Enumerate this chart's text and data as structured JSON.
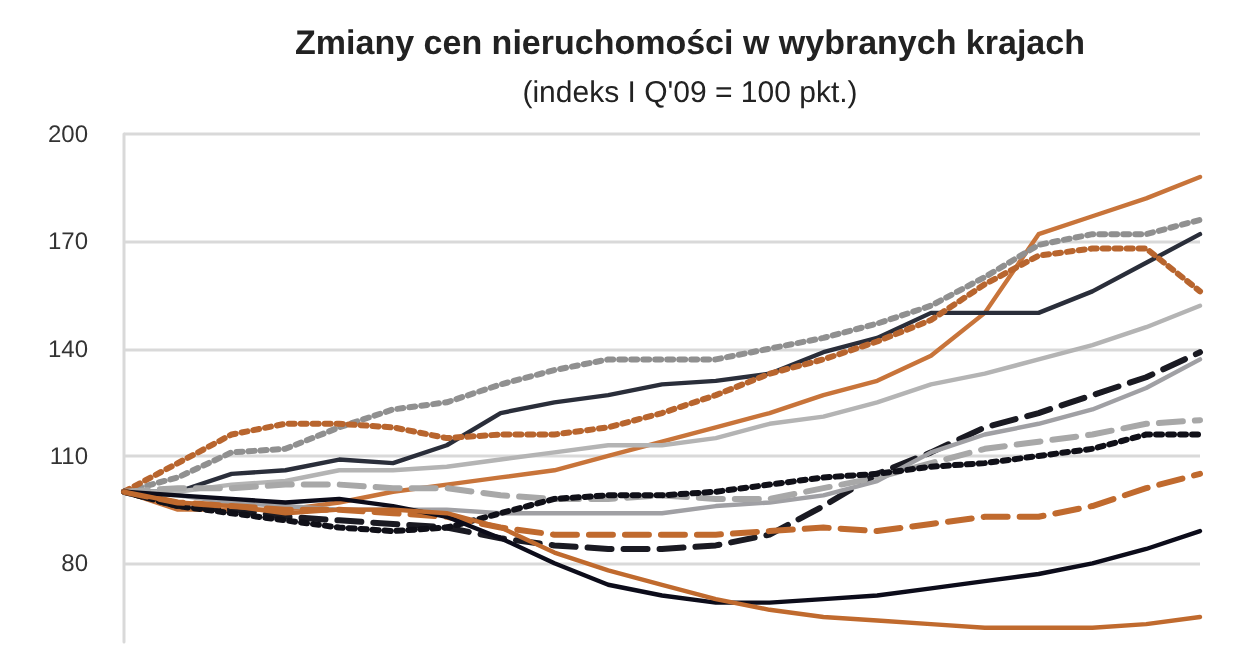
{
  "chart_data": {
    "type": "line",
    "title": "Zmiany cen nieruchomości w wybranych krajach",
    "subtitle": "(indeks I Q'09 = 100 pkt.)",
    "categories": [
      null,
      null,
      null,
      null,
      null,
      null,
      null,
      null,
      null,
      null,
      null,
      null,
      null,
      null,
      null,
      null,
      null,
      null,
      null,
      null,
      null
    ],
    "ylim": [
      58,
      200
    ],
    "yticks": [
      80,
      110,
      140,
      170,
      200
    ],
    "grid": "y",
    "marker": "none",
    "series": [
      {
        "color": "#c8743a",
        "line_style": "solid",
        "values": [
          100,
          95,
          95,
          95,
          97,
          100,
          102,
          104,
          106,
          110,
          114,
          118,
          122,
          127,
          131,
          138,
          150,
          172,
          177,
          182,
          188
        ]
      },
      {
        "color": "#2a2e3a",
        "line_style": "solid",
        "values": [
          100,
          100,
          105,
          106,
          109,
          108,
          113,
          122,
          125,
          127,
          130,
          131,
          133,
          139,
          143,
          150,
          150,
          150,
          156,
          164,
          172
        ]
      },
      {
        "color": "#909090",
        "line_style": "dotted",
        "values": [
          100,
          104,
          111,
          112,
          118,
          123,
          125,
          130,
          134,
          137,
          137,
          137,
          140,
          143,
          147,
          152,
          160,
          169,
          172,
          172,
          176
        ]
      },
      {
        "color": "#b8652e",
        "line_style": "dotted",
        "values": [
          100,
          108,
          116,
          119,
          119,
          118,
          115,
          116,
          116,
          118,
          122,
          127,
          133,
          137,
          142,
          148,
          158,
          166,
          168,
          168,
          156
        ]
      },
      {
        "color": "#b4b4b4",
        "line_style": "solid",
        "values": [
          100,
          100,
          102,
          103,
          106,
          106,
          107,
          109,
          111,
          113,
          113,
          115,
          119,
          121,
          125,
          130,
          133,
          137,
          141,
          146,
          152
        ]
      },
      {
        "color": "#1a1a22",
        "line_style": "dashed",
        "values": [
          100,
          96,
          95,
          93,
          92,
          91,
          90,
          87,
          85,
          84,
          84,
          85,
          88,
          96,
          105,
          111,
          118,
          122,
          127,
          132,
          139
        ]
      },
      {
        "color": "#a0a0a4",
        "line_style": "solid",
        "values": [
          100,
          99,
          97,
          96,
          95,
          95,
          95,
          94,
          94,
          94,
          94,
          96,
          97,
          99,
          103,
          111,
          116,
          119,
          123,
          129,
          137
        ]
      },
      {
        "color": "#a8a8a8",
        "line_style": "dashed",
        "values": [
          100,
          101,
          101,
          102,
          102,
          101,
          101,
          99,
          98,
          98,
          99,
          98,
          98,
          101,
          104,
          108,
          112,
          114,
          116,
          119,
          120
        ]
      },
      {
        "color": "#101018",
        "line_style": "dotted",
        "values": [
          100,
          96,
          94,
          92,
          90,
          89,
          90,
          94,
          98,
          99,
          99,
          100,
          102,
          104,
          105,
          107,
          108,
          110,
          112,
          116,
          116
        ]
      },
      {
        "color": "#c06a2e",
        "line_style": "dashed",
        "values": [
          100,
          97,
          96,
          95,
          95,
          94,
          93,
          90,
          88,
          88,
          88,
          88,
          89,
          90,
          89,
          91,
          93,
          93,
          96,
          101,
          105
        ]
      },
      {
        "color": "#0c0c1a",
        "line_style": "solid",
        "values": [
          100,
          99,
          98,
          97,
          98,
          96,
          93,
          87,
          80,
          74,
          71,
          69,
          69,
          70,
          71,
          73,
          75,
          77,
          80,
          84,
          89
        ]
      },
      {
        "color": "#c06a2e",
        "line_style": "solid",
        "values": [
          100,
          97,
          96,
          94,
          95,
          95,
          94,
          90,
          83,
          78,
          74,
          70,
          67,
          65,
          64,
          63,
          62,
          62,
          62,
          63,
          65
        ]
      }
    ]
  }
}
